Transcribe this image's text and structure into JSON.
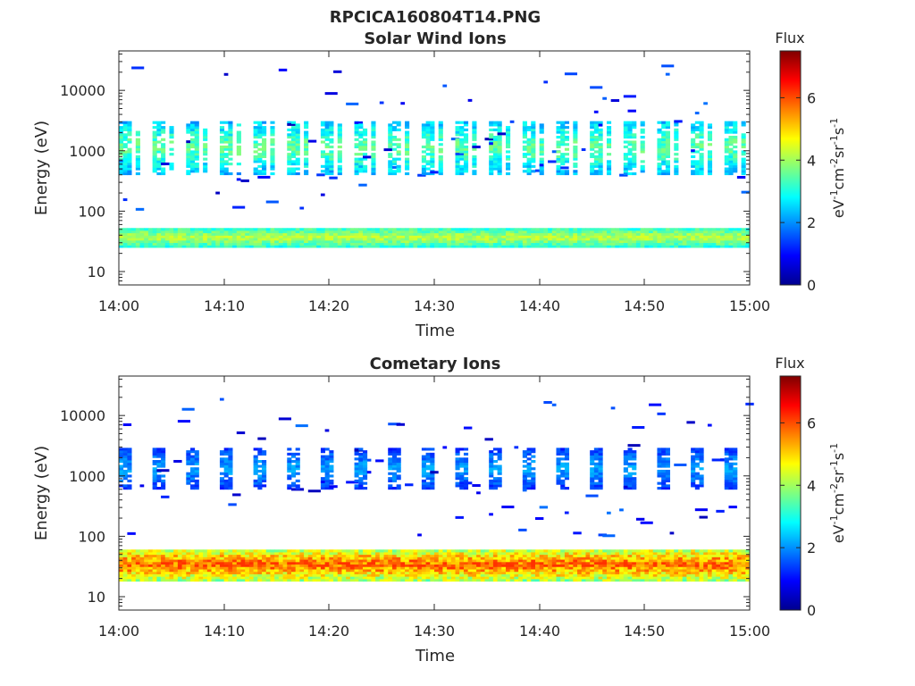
{
  "figure": {
    "filename": "RPCICA160804T14.PNG"
  },
  "colorbar": {
    "title": "Flux",
    "label_main": "eV",
    "ticks": [
      "0",
      "2",
      "4",
      "6"
    ],
    "range": [
      0,
      7.5
    ]
  },
  "chart_data": [
    {
      "type": "heatmap",
      "title": "Solar Wind Ions",
      "xlabel": "Time",
      "ylabel": "Energy (eV)",
      "x_ticks": [
        "14:00",
        "14:10",
        "14:20",
        "14:30",
        "14:40",
        "14:50",
        "15:00"
      ],
      "y_ticks": [
        "10",
        "100",
        "1000",
        "10000"
      ],
      "y_scale": "log",
      "xlim": [
        "14:00",
        "15:00"
      ],
      "ylim": [
        6,
        45000
      ],
      "colorbar_range": [
        0,
        7.5
      ],
      "bands": [
        {
          "energy_min": 25,
          "energy_max": 50,
          "flux_min": 2.4,
          "flux_max": 4.4
        },
        {
          "energy_min": 400,
          "energy_max": 3000,
          "flux_min": 1.5,
          "flux_max": 3.8
        }
      ]
    },
    {
      "type": "heatmap",
      "title": "Cometary Ions",
      "xlabel": "Time",
      "ylabel": "Energy (eV)",
      "x_ticks": [
        "14:00",
        "14:10",
        "14:20",
        "14:30",
        "14:40",
        "14:50",
        "15:00"
      ],
      "y_ticks": [
        "10",
        "100",
        "1000",
        "10000"
      ],
      "y_scale": "log",
      "xlim": [
        "14:00",
        "15:00"
      ],
      "ylim": [
        6,
        45000
      ],
      "colorbar_range": [
        0,
        7.5
      ],
      "bands": [
        {
          "energy_min": 18,
          "energy_max": 60,
          "flux_min": 2.8,
          "flux_max": 6.2
        },
        {
          "energy_min": 600,
          "energy_max": 2700,
          "flux_min": 0.8,
          "flux_max": 2.3
        }
      ]
    }
  ]
}
